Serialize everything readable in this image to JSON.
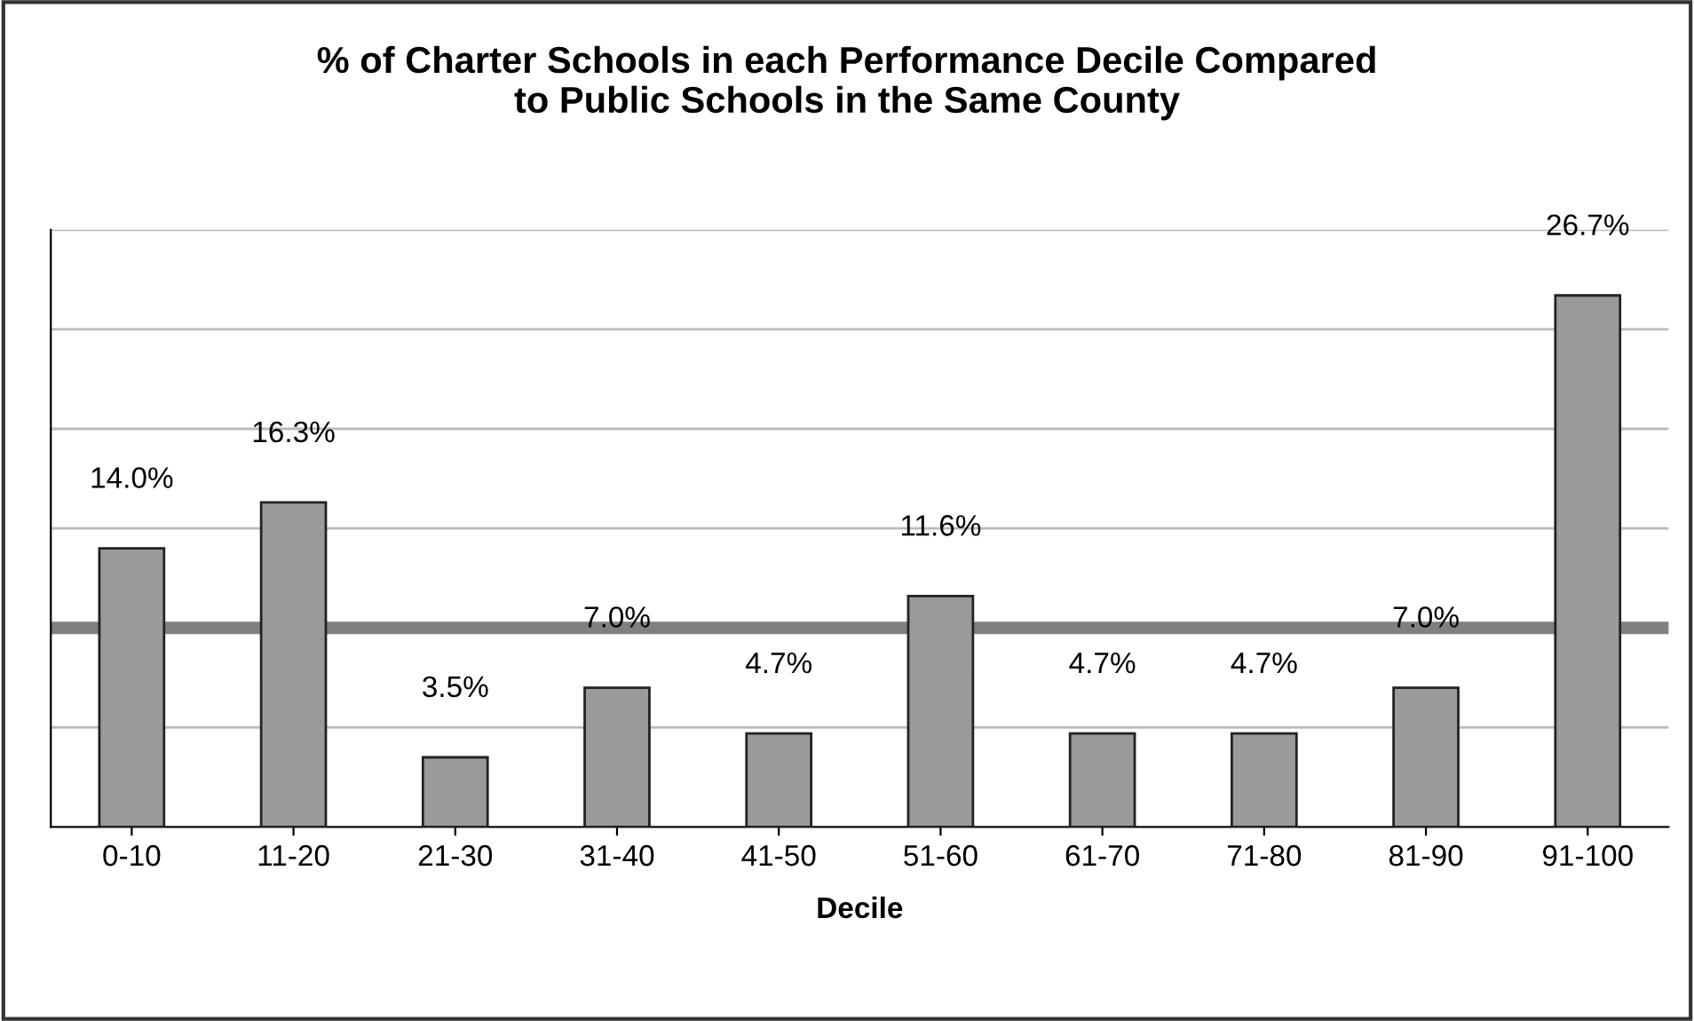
{
  "chart_data": {
    "type": "bar",
    "title": "% of Charter Schools in each Performance Decile Compared\nto Public Schools in the Same County",
    "xlabel": "Decile",
    "categories": [
      "0-10",
      "11-20",
      "21-30",
      "31-40",
      "41-50",
      "51-60",
      "61-70",
      "71-80",
      "81-90",
      "91-100"
    ],
    "values": [
      14.0,
      16.3,
      3.5,
      7.0,
      4.7,
      11.6,
      4.7,
      4.7,
      7.0,
      26.7
    ],
    "value_labels": [
      "14.0%",
      "16.3%",
      "3.5%",
      "7.0%",
      "4.7%",
      "11.6%",
      "4.7%",
      "4.7%",
      "7.0%",
      "26.7%"
    ],
    "color": "#9a9a9a",
    "ylim": [
      0,
      30
    ],
    "yticks": [
      {
        "value": 0,
        "label": null
      },
      {
        "value": 5,
        "label": null
      },
      {
        "value": 10,
        "label": null
      },
      {
        "value": 15,
        "label": null
      },
      {
        "value": 20,
        "label": null
      },
      {
        "value": 25,
        "label": null
      },
      {
        "value": 30,
        "label": null
      }
    ],
    "tick_labels": "x",
    "grid": "y",
    "ref_lines": [
      {
        "axis": "y",
        "value": 10,
        "color": "#808080"
      }
    ]
  }
}
